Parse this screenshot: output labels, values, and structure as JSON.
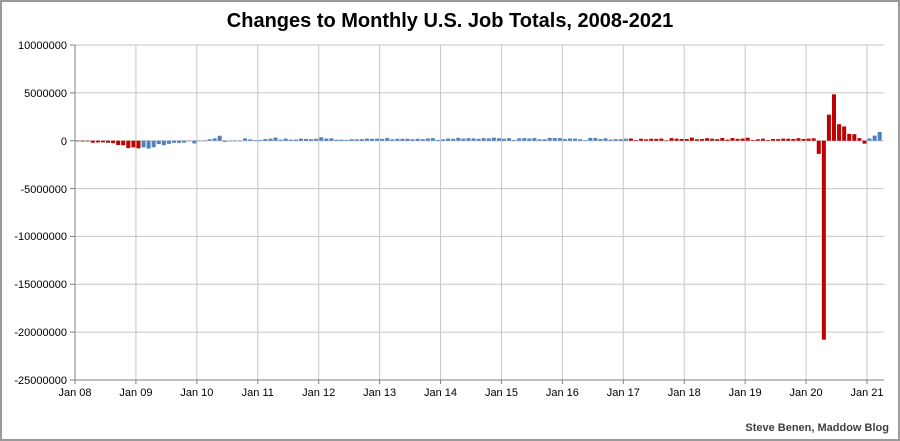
{
  "window": {
    "background": "#ffffff",
    "border_color": "#9a9a9a"
  },
  "attribution": "Steve Benen, Maddow Blog",
  "chart_data": {
    "type": "bar",
    "title": "Changes to Monthly U.S. Job Totals, 2008-2021",
    "xlabel": "",
    "ylabel": "",
    "values_unit": "jobs, monthly net change (values stored in thousands)",
    "start_month": "Jan 2008",
    "end_month": "Mar 2021",
    "ylim": [
      -25000000,
      10000000
    ],
    "grid": true,
    "legend": "none",
    "y_tick_labels": [
      "10000000",
      "5000000",
      "0",
      "-5000000",
      "-10000000",
      "-15000000",
      "-20000000",
      "-25000000"
    ],
    "y_tick_values": [
      10000000,
      5000000,
      0,
      -5000000,
      -10000000,
      -15000000,
      -20000000,
      -25000000
    ],
    "x_tick_labels": [
      "Jan 08",
      "Jan 09",
      "Jan 10",
      "Jan 11",
      "Jan 12",
      "Jan 13",
      "Jan 14",
      "Jan 15",
      "Jan 16",
      "Jan 17",
      "Jan 18",
      "Jan 19",
      "Jan 20",
      "Jan 21"
    ],
    "bar_colors_by_party": {
      "R": "#c00000",
      "D": "#4f81bd"
    },
    "party_ranges": [
      {
        "party": "R",
        "from_index": 0,
        "to_index": 12,
        "note": "Jan 2008 - Jan 2009"
      },
      {
        "party": "D",
        "from_index": 13,
        "to_index": 108,
        "note": "Feb 2009 - Jan 2017"
      },
      {
        "party": "R",
        "from_index": 109,
        "to_index": 155,
        "note": "Feb 2017 - Dec 2020"
      },
      {
        "party": "D",
        "from_index": 156,
        "to_index": 158,
        "note": "Jan 2021 - Mar 2021"
      }
    ],
    "values_thousands": [
      -17,
      -83,
      -72,
      -214,
      -182,
      -172,
      -210,
      -259,
      -452,
      -474,
      -765,
      -697,
      -798,
      -701,
      -826,
      -684,
      -354,
      -467,
      -327,
      -216,
      -227,
      -198,
      -6,
      -283,
      -40,
      -35,
      156,
      251,
      516,
      -122,
      -61,
      -42,
      -57,
      241,
      137,
      71,
      70,
      168,
      212,
      322,
      102,
      217,
      106,
      122,
      221,
      183,
      164,
      196,
      360,
      226,
      243,
      96,
      110,
      88,
      160,
      150,
      161,
      225,
      203,
      214,
      197,
      280,
      141,
      203,
      199,
      201,
      149,
      202,
      164,
      237,
      274,
      84,
      144,
      222,
      203,
      304,
      229,
      267,
      243,
      203,
      271,
      243,
      321,
      256,
      201,
      266,
      84,
      251,
      273,
      228,
      277,
      150,
      145,
      298,
      280,
      271,
      168,
      233,
      225,
      153,
      43,
      297,
      291,
      176,
      249,
      124,
      164,
      155,
      216,
      232,
      50,
      207,
      145,
      210,
      189,
      221,
      14,
      271,
      216,
      175,
      176,
      324,
      155,
      175,
      268,
      208,
      165,
      286,
      119,
      277,
      196,
      227,
      312,
      56,
      153,
      216,
      62,
      178,
      166,
      219,
      208,
      185,
      261,
      184,
      214,
      251,
      -1373,
      -20787,
      2725,
      4846,
      1726,
      1489,
      716,
      680,
      264,
      -306,
      233,
      536,
      916
    ],
    "annotations": [],
    "colors": {
      "gridline": "#c6c6c6",
      "axis": "#808080",
      "title_text": "#000000",
      "tick_text": "#000000",
      "attribution_text": "#3f3f3f"
    }
  }
}
